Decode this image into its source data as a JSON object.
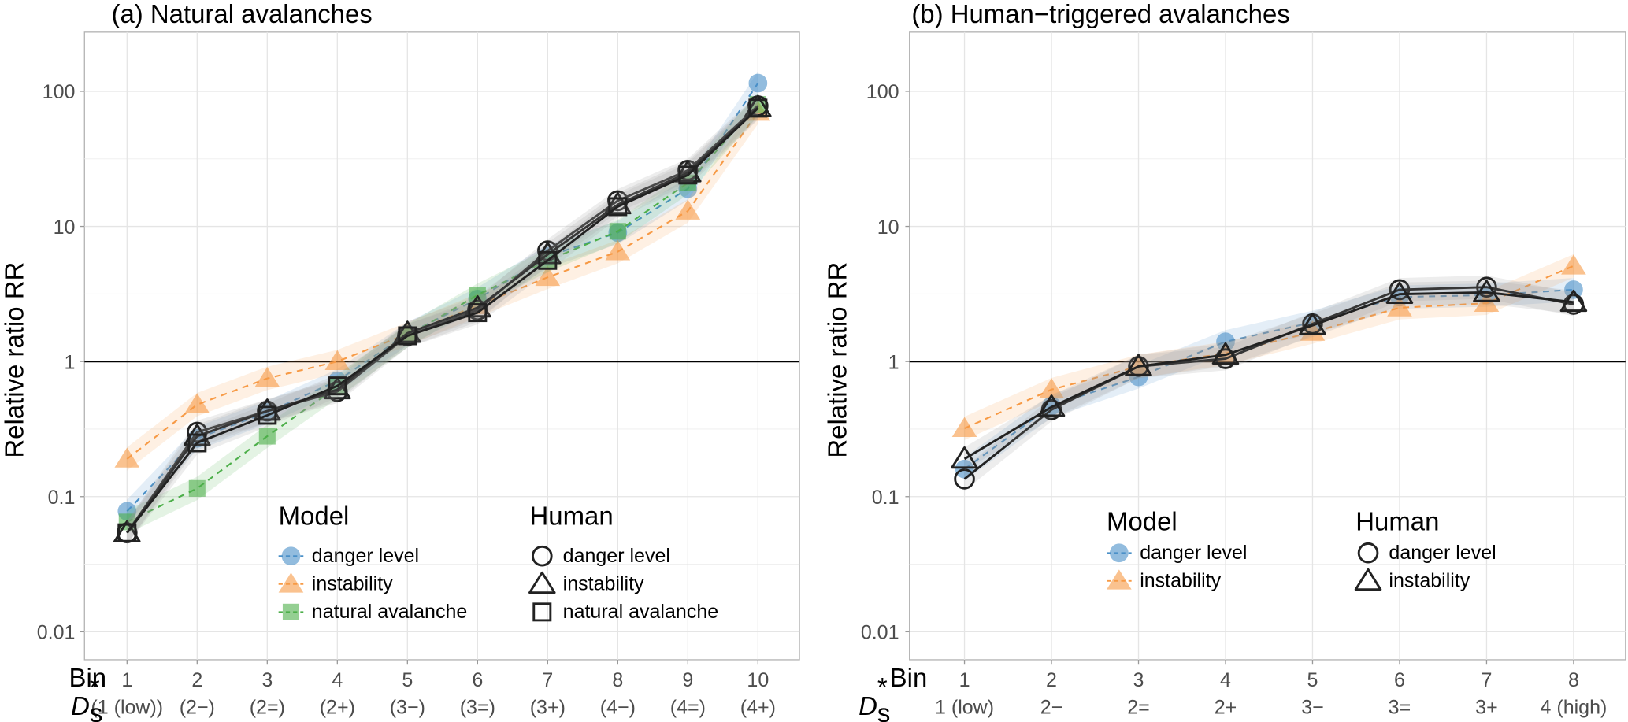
{
  "colors": {
    "danger_level": "#4a90c8",
    "instability": "#f79a45",
    "natural_avalanche": "#4daf4a",
    "human": "#222222",
    "grid": "#e5e5e5",
    "border": "#b3b3b3"
  },
  "chart_data": [
    {
      "id": "a",
      "type": "line",
      "title": "(a) Natural avalanches",
      "ylabel": "Relative ratio RR",
      "yscale": "log",
      "ylim": [
        0.005,
        250
      ],
      "yticks": [
        0.01,
        0.1,
        1,
        10,
        100
      ],
      "ytick_labels": [
        "0.01",
        "0.1",
        "1",
        "10",
        "100"
      ],
      "reference_line": 1,
      "x": [
        1,
        2,
        3,
        4,
        5,
        6,
        7,
        8,
        9,
        10
      ],
      "xlabel_row1_title": "Bin",
      "xlabel_row2_title": "D",
      "xlabel_row2_sub": "s",
      "xlabel_row2_sup": "*",
      "xtick_labels_bin": [
        "1",
        "2",
        "3",
        "4",
        "5",
        "6",
        "7",
        "8",
        "9",
        "10"
      ],
      "xtick_labels_ds": [
        "(1 (low))",
        "(2−)",
        "(2=)",
        "(2+)",
        "(3−)",
        "(3=)",
        "(3+)",
        "(4−)",
        "(4=)",
        "(4+)"
      ],
      "series": [
        {
          "group": "Model",
          "name": "danger level",
          "marker": "circle",
          "style": "dashed",
          "color_key": "danger_level",
          "values": [
            0.078,
            0.27,
            0.42,
            0.72,
            1.6,
            2.9,
            6.0,
            9.0,
            19,
            115
          ]
        },
        {
          "group": "Model",
          "name": "instability",
          "marker": "triangle",
          "style": "dashed",
          "color_key": "instability",
          "values": [
            0.19,
            0.48,
            0.75,
            1.0,
            1.6,
            2.6,
            4.2,
            6.5,
            13,
            70
          ]
        },
        {
          "group": "Model",
          "name": "natural avalanche",
          "marker": "square",
          "style": "dashed",
          "color_key": "natural_avalanche",
          "values": [
            0.065,
            0.115,
            0.28,
            0.65,
            1.55,
            3.1,
            5.6,
            9.2,
            21,
            80
          ]
        },
        {
          "group": "Human",
          "name": "danger level",
          "marker": "circle",
          "style": "solid",
          "color_key": "human",
          "values": [
            0.054,
            0.3,
            0.43,
            0.6,
            1.55,
            2.4,
            6.6,
            15.5,
            26,
            78
          ]
        },
        {
          "group": "Human",
          "name": "instability",
          "marker": "triangle",
          "style": "solid",
          "color_key": "human",
          "values": [
            0.054,
            0.28,
            0.43,
            0.62,
            1.62,
            2.5,
            6.2,
            14.5,
            25,
            76
          ]
        },
        {
          "group": "Human",
          "name": "natural avalanche",
          "marker": "square",
          "style": "solid",
          "color_key": "human",
          "values": [
            0.054,
            0.25,
            0.4,
            0.66,
            1.55,
            2.3,
            5.6,
            14.0,
            24,
            75
          ]
        }
      ],
      "legend": {
        "placement": "bottom-center inside",
        "groups": [
          {
            "title": "Model",
            "items": [
              "danger level",
              "instability",
              "natural avalanche"
            ]
          },
          {
            "title": "Human",
            "items": [
              "danger level",
              "instability",
              "natural avalanche"
            ]
          }
        ]
      },
      "grid": true
    },
    {
      "id": "b",
      "type": "line",
      "title": "(b) Human−triggered avalanches",
      "ylabel": "Relative ratio RR",
      "yscale": "log",
      "ylim": [
        0.005,
        250
      ],
      "yticks": [
        0.01,
        0.1,
        1,
        10,
        100
      ],
      "ytick_labels": [
        "0.01",
        "0.1",
        "1",
        "10",
        "100"
      ],
      "reference_line": 1,
      "x": [
        1,
        2,
        3,
        4,
        5,
        6,
        7,
        8
      ],
      "xlabel_row1_title": "Bin",
      "xlabel_row2_title": "D",
      "xlabel_row2_sub": "s",
      "xlabel_row2_sup": "*",
      "xtick_labels_bin": [
        "1",
        "2",
        "3",
        "4",
        "5",
        "6",
        "7",
        "8"
      ],
      "xtick_labels_ds": [
        "1 (low)",
        "2−",
        "2=",
        "2+",
        "3−",
        "3=",
        "3+",
        "4 (high)"
      ],
      "series": [
        {
          "group": "Model",
          "name": "danger level",
          "marker": "circle",
          "style": "dashed",
          "color_key": "danger_level",
          "values": [
            0.16,
            0.47,
            0.77,
            1.4,
            1.95,
            3.0,
            3.1,
            3.4
          ]
        },
        {
          "group": "Model",
          "name": "instability",
          "marker": "triangle",
          "style": "dashed",
          "color_key": "instability",
          "values": [
            0.32,
            0.62,
            0.92,
            1.15,
            1.65,
            2.5,
            2.7,
            5.1
          ]
        },
        {
          "group": "Human",
          "name": "danger level",
          "marker": "circle",
          "style": "solid",
          "color_key": "human",
          "values": [
            0.135,
            0.44,
            0.92,
            1.05,
            1.9,
            3.4,
            3.55,
            2.65
          ]
        },
        {
          "group": "Human",
          "name": "instability",
          "marker": "triangle",
          "style": "solid",
          "color_key": "human",
          "values": [
            0.19,
            0.46,
            0.92,
            1.12,
            1.85,
            3.15,
            3.25,
            2.75
          ]
        }
      ],
      "legend": {
        "placement": "bottom-center inside",
        "groups": [
          {
            "title": "Model",
            "items": [
              "danger level",
              "instability"
            ]
          },
          {
            "title": "Human",
            "items": [
              "danger level",
              "instability"
            ]
          }
        ]
      },
      "grid": true
    }
  ]
}
